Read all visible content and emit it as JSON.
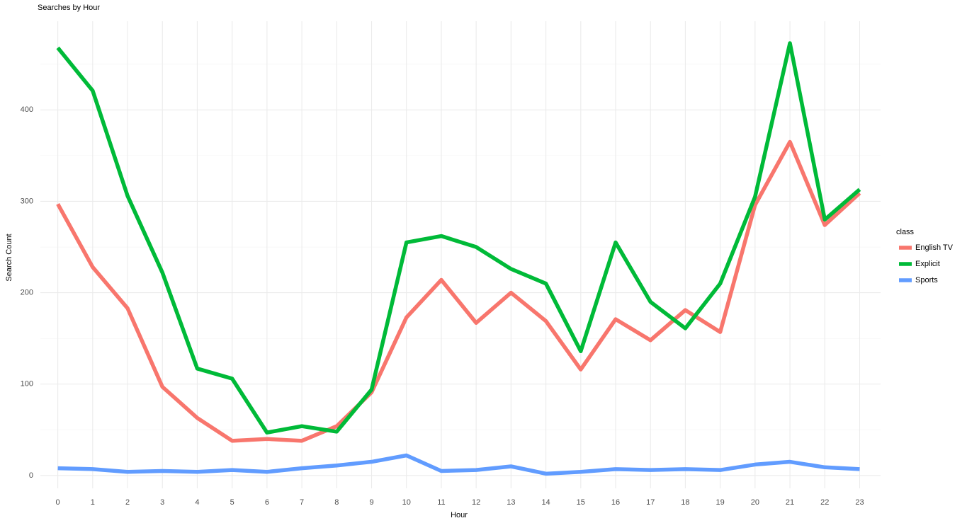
{
  "chart_data": {
    "type": "line",
    "title": "Searches by Hour",
    "x_label": "Hour",
    "y_label": "Search Count",
    "x": [
      0,
      1,
      2,
      3,
      4,
      5,
      6,
      7,
      8,
      9,
      10,
      11,
      12,
      13,
      14,
      15,
      16,
      17,
      18,
      19,
      20,
      21,
      22,
      23
    ],
    "series": [
      {
        "name": "English TV",
        "color": "#f8766d",
        "values": [
          297,
          228,
          183,
          97,
          63,
          38,
          40,
          38,
          54,
          91,
          173,
          214,
          167,
          200,
          169,
          116,
          171,
          148,
          181,
          157,
          296,
          365,
          274,
          309
        ]
      },
      {
        "name": "Explicit",
        "color": "#00ba38",
        "values": [
          468,
          421,
          306,
          222,
          117,
          106,
          47,
          54,
          48,
          94,
          255,
          262,
          250,
          226,
          210,
          136,
          255,
          190,
          161,
          210,
          305,
          473,
          280,
          313
        ]
      },
      {
        "name": "Sports",
        "color": "#619cff",
        "values": [
          8,
          7,
          4,
          5,
          4,
          6,
          4,
          8,
          11,
          15,
          22,
          5,
          6,
          10,
          2,
          4,
          7,
          6,
          7,
          6,
          12,
          15,
          9,
          7
        ]
      }
    ],
    "legend_title": "class",
    "legend_position": "right",
    "xlim": [
      -0.5,
      23.6
    ],
    "ylim": [
      -14,
      497
    ],
    "xticks": [
      0,
      1,
      2,
      3,
      4,
      5,
      6,
      7,
      8,
      9,
      10,
      11,
      12,
      13,
      14,
      15,
      16,
      17,
      18,
      19,
      20,
      21,
      22,
      23
    ],
    "yticks": [
      0,
      100,
      200,
      300,
      400
    ],
    "y_minor_ticks": [
      50,
      150,
      250,
      350,
      450
    ],
    "grid": true
  }
}
